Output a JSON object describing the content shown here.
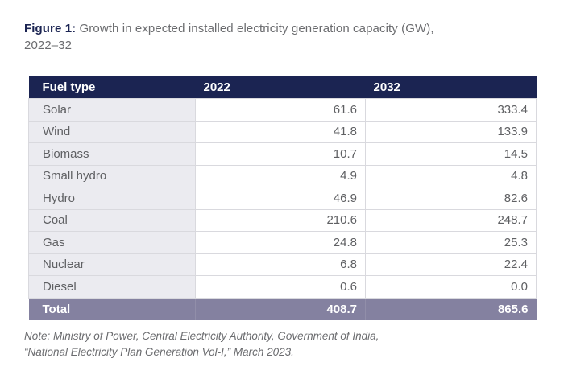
{
  "figure": {
    "label": "Figure 1:",
    "title_line1": " Growth in expected installed electricity generation capacity (GW),",
    "title_line2": "2022–32"
  },
  "table": {
    "columns": [
      "Fuel type",
      "2022",
      "2032"
    ],
    "rows": [
      {
        "fuel": "Solar",
        "y2022": "61.6",
        "y2032": "333.4"
      },
      {
        "fuel": "Wind",
        "y2022": "41.8",
        "y2032": "133.9"
      },
      {
        "fuel": "Biomass",
        "y2022": "10.7",
        "y2032": "14.5"
      },
      {
        "fuel": "Small hydro",
        "y2022": "4.9",
        "y2032": "4.8"
      },
      {
        "fuel": "Hydro",
        "y2022": "46.9",
        "y2032": "82.6"
      },
      {
        "fuel": "Coal",
        "y2022": "210.6",
        "y2032": "248.7"
      },
      {
        "fuel": "Gas",
        "y2022": "24.8",
        "y2032": "25.3"
      },
      {
        "fuel": "Nuclear",
        "y2022": "6.8",
        "y2032": "22.4"
      },
      {
        "fuel": "Diesel",
        "y2022": "0.6",
        "y2032": "0.0"
      }
    ],
    "total": {
      "fuel": "Total",
      "y2022": "408.7",
      "y2032": "865.6"
    }
  },
  "note": {
    "line1": "Note: Ministry of Power, Central Electricity Authority, Government of India,",
    "line2": "“National Electricity Plan Generation Vol-I,” March 2023."
  },
  "colors": {
    "header_bg": "#1b2452",
    "total_bg": "#8481a0",
    "fuel_column_bg": "#ebebf0",
    "border": "#d9d9de",
    "title_accent": "#1b2452",
    "body_text": "#5f6063",
    "muted_text": "#6b6c6f"
  },
  "chart_data": {
    "type": "table",
    "title": "Figure 1: Growth in expected installed electricity generation capacity (GW), 2022–32",
    "categories": [
      "Solar",
      "Wind",
      "Biomass",
      "Small hydro",
      "Hydro",
      "Coal",
      "Gas",
      "Nuclear",
      "Diesel",
      "Total"
    ],
    "series": [
      {
        "name": "2022",
        "values": [
          61.6,
          41.8,
          10.7,
          4.9,
          46.9,
          210.6,
          24.8,
          6.8,
          0.6,
          408.7
        ]
      },
      {
        "name": "2032",
        "values": [
          333.4,
          133.9,
          14.5,
          4.8,
          82.6,
          248.7,
          25.3,
          22.4,
          0.0,
          865.6
        ]
      }
    ],
    "units": "GW",
    "source_note": "Note: Ministry of Power, Central Electricity Authority, Government of India, “National Electricity Plan Generation Vol-I,” March 2023."
  }
}
